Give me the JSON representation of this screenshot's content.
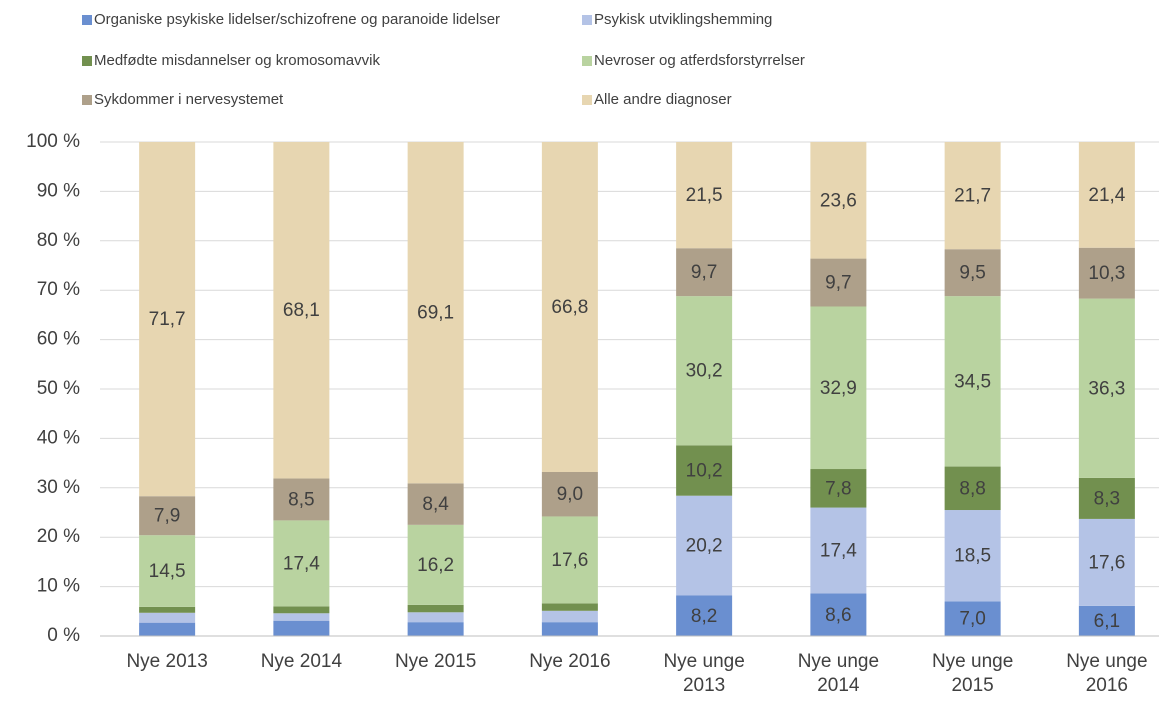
{
  "chart_data": {
    "type": "stacked_bar",
    "categories": [
      "Nye 2013",
      "Nye 2014",
      "Nye 2015",
      "Nye 2016",
      "Nye unge 2013",
      "Nye unge 2014",
      "Nye unge 2015",
      "Nye unge 2016"
    ],
    "series": [
      {
        "name": "Organiske psykiske lidelser/schizofrene og paranoide lidelser",
        "color": "#6a8fd0",
        "values": [
          2.7,
          3.1,
          2.8,
          2.8,
          8.2,
          8.6,
          7.0,
          6.1
        ],
        "value_labels": [
          null,
          null,
          null,
          null,
          "8,2",
          "8,6",
          "7,0",
          "6,1"
        ]
      },
      {
        "name": "Psykisk utviklingshemming",
        "color": "#b4c3e6",
        "values": [
          2.0,
          1.5,
          2.0,
          2.3,
          20.2,
          17.4,
          18.5,
          17.6
        ],
        "value_labels": [
          null,
          null,
          null,
          null,
          "20,2",
          "17,4",
          "18,5",
          "17,6"
        ]
      },
      {
        "name": "Medfødte misdannelser og kromosomavvik",
        "color": "#72904f",
        "values": [
          1.2,
          1.4,
          1.5,
          1.5,
          10.2,
          7.8,
          8.8,
          8.3
        ],
        "value_labels": [
          null,
          null,
          null,
          null,
          "10,2",
          "7,8",
          "8,8",
          "8,3"
        ]
      },
      {
        "name": "Nevroser og atferdsforstyrrelser",
        "color": "#b9d3a0",
        "values": [
          14.5,
          17.4,
          16.2,
          17.6,
          30.2,
          32.9,
          34.5,
          36.3
        ],
        "value_labels": [
          "14,5",
          "17,4",
          "16,2",
          "17,6",
          "30,2",
          "32,9",
          "34,5",
          "36,3"
        ]
      },
      {
        "name": "Sykdommer i nervesystemet",
        "color": "#aea08a",
        "values": [
          7.9,
          8.5,
          8.4,
          9.0,
          9.7,
          9.7,
          9.5,
          10.3
        ],
        "value_labels": [
          "7,9",
          "8,5",
          "8,4",
          "9,0",
          "9,7",
          "9,7",
          "9,5",
          "10,3"
        ]
      },
      {
        "name": "Alle andre diagnoser",
        "color": "#e7d6b1",
        "values": [
          71.7,
          68.1,
          69.1,
          66.8,
          21.5,
          23.6,
          21.7,
          21.4
        ],
        "value_labels": [
          "71,7",
          "68,1",
          "69,1",
          "66,8",
          "21,5",
          "23,6",
          "21,7",
          "21,4"
        ]
      }
    ],
    "ylim": [
      0,
      100
    ],
    "yticks": [
      {
        "value": 0,
        "label": "0 %"
      },
      {
        "value": 10,
        "label": "10 %"
      },
      {
        "value": 20,
        "label": "20 %"
      },
      {
        "value": 30,
        "label": "30 %"
      },
      {
        "value": 40,
        "label": "40 %"
      },
      {
        "value": 50,
        "label": "50 %"
      },
      {
        "value": 60,
        "label": "60 %"
      },
      {
        "value": 70,
        "label": "70 %"
      },
      {
        "value": 80,
        "label": "80 %"
      },
      {
        "value": 90,
        "label": "90 %"
      },
      {
        "value": 100,
        "label": "100 %"
      }
    ],
    "grid": true,
    "legend": "top"
  }
}
